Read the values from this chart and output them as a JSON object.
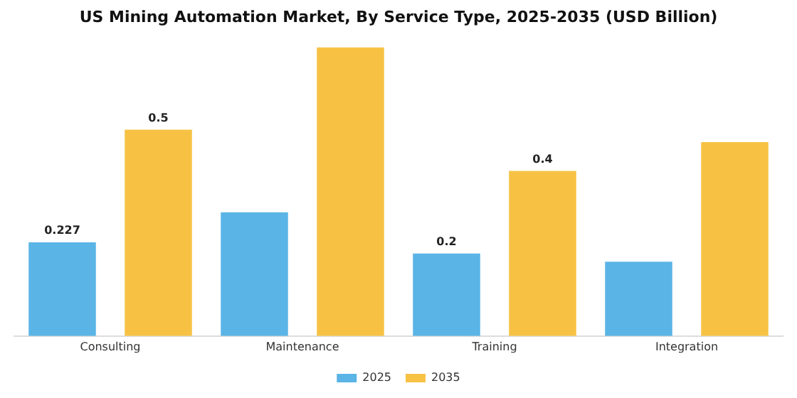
{
  "chart_data": {
    "type": "bar",
    "title": "US Mining Automation Market, By Service Type, 2025-2035 (USD Billion)",
    "categories": [
      "Consulting",
      "Maintenance",
      "Training",
      "Integration"
    ],
    "series": [
      {
        "name": "2025",
        "color": "#5ab4e6",
        "values": [
          0.227,
          0.3,
          0.2,
          0.18
        ],
        "value_labels": [
          "0.227",
          null,
          "0.2",
          null
        ]
      },
      {
        "name": "2035",
        "color": "#f7c244",
        "values": [
          0.5,
          0.7,
          0.4,
          0.47
        ],
        "value_labels": [
          "0.5",
          null,
          "0.4",
          null
        ]
      }
    ],
    "legend": "bottom",
    "grid": false
  }
}
